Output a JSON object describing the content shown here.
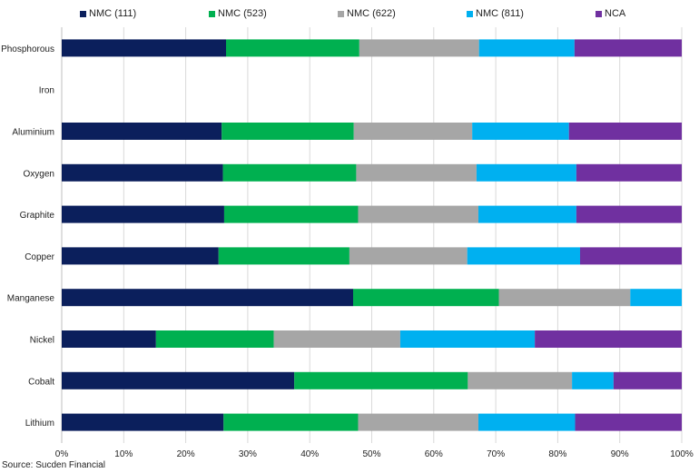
{
  "chart_data": {
    "type": "bar",
    "orientation": "horizontal",
    "stacked": "percent",
    "categories": [
      "Phosphorous",
      "Iron",
      "Aluminium",
      "Oxygen",
      "Graphite",
      "Copper",
      "Manganese",
      "Nickel",
      "Cobalt",
      "Lithium"
    ],
    "series": [
      {
        "name": "NMC (111)",
        "color": "#0b1f5c",
        "values": [
          26.5,
          0,
          25.8,
          26.0,
          26.2,
          25.3,
          47.0,
          15.2,
          37.5,
          26.1
        ]
      },
      {
        "name": "NMC (523)",
        "color": "#00b050",
        "values": [
          21.5,
          0,
          21.3,
          21.5,
          21.6,
          21.1,
          23.5,
          19.0,
          28.0,
          21.7
        ]
      },
      {
        "name": "NMC (622)",
        "color": "#a6a6a6",
        "values": [
          19.3,
          0,
          19.1,
          19.4,
          19.4,
          19.0,
          21.2,
          20.4,
          16.8,
          19.4
        ]
      },
      {
        "name": "NMC (811)",
        "color": "#00b0f0",
        "values": [
          15.4,
          0,
          15.6,
          16.1,
          15.8,
          18.2,
          8.3,
          21.7,
          6.7,
          15.6
        ]
      },
      {
        "name": "NCA",
        "color": "#7030a0",
        "values": [
          17.3,
          0,
          18.2,
          17.0,
          17.0,
          16.4,
          0,
          23.7,
          11.0,
          17.2
        ]
      }
    ],
    "xlim": [
      0,
      100
    ],
    "xticks": [
      "0%",
      "10%",
      "20%",
      "30%",
      "40%",
      "50%",
      "60%",
      "70%",
      "80%",
      "90%",
      "100%"
    ],
    "gridlines": true,
    "legend_position": "top",
    "title": "",
    "xlabel": "",
    "ylabel": ""
  },
  "source": "Source: Sucden Financial"
}
